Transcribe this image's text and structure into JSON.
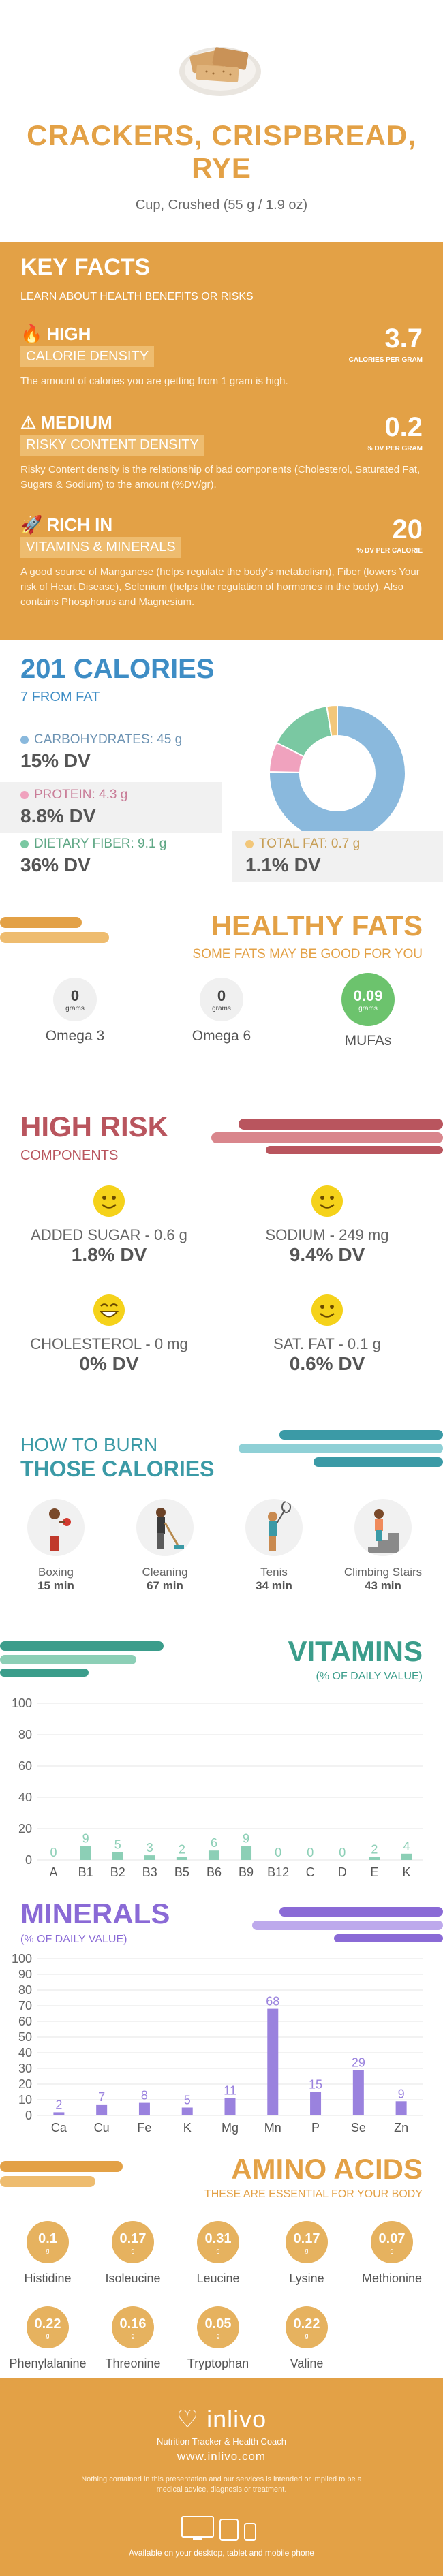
{
  "header": {
    "title_line1": "CRACKERS, CRISPBREAD,",
    "title_line2": "RYE",
    "serving": "Cup, Crushed (55 g / 1.9 oz)"
  },
  "key_facts": {
    "title": "KEY FACTS",
    "subtitle": "LEARN ABOUT HEALTH BENEFITS OR RISKS",
    "items": [
      {
        "level": "HIGH",
        "label": "CALORIE DENSITY",
        "value": "3.7",
        "unit": "CALORIES PER GRAM",
        "desc": "The amount of calories you are getting from 1 gram is high."
      },
      {
        "level": "MEDIUM",
        "label": "RISKY CONTENT DENSITY",
        "value": "0.2",
        "unit": "% DV PER GRAM",
        "desc": "Risky Content density is the relationship of bad components (Cholesterol, Saturated Fat, Sugars & Sodium) to the amount (%DV/gr)."
      },
      {
        "level": "RICH  IN",
        "label": "VITAMINS & MINERALS",
        "value": "20",
        "unit": "% DV PER CALORIE",
        "desc": "A good source of Manganese (helps regulate the body's metabolism), Fiber (lowers Your risk of Heart Disease), Selenium (helps the regulation of hormones in the body). Also contains Phosphorus and Magnesium."
      }
    ]
  },
  "calories": {
    "title": "201 CALORIES",
    "subtitle": "7 FROM FAT",
    "macros": [
      {
        "label": "CARBOHYDRATES: 45 g",
        "dv": "15% DV",
        "color": "#8ab9dd"
      },
      {
        "label": "PROTEIN: 4.3 g",
        "dv": "8.8% DV",
        "color": "#f0a2be"
      },
      {
        "label": "DIETARY FIBER: 9.1 g",
        "dv": "36% DV",
        "color": "#7ac8a2"
      },
      {
        "label": "TOTAL FAT: 0.7 g",
        "dv": "1.1% DV",
        "color": "#f2c77a"
      }
    ],
    "donut": [
      {
        "name": "carbs",
        "value": 180,
        "color": "#8ab9dd"
      },
      {
        "name": "protein",
        "value": 17,
        "color": "#f0a2be"
      },
      {
        "name": "fiber",
        "value": 36,
        "color": "#7ac8a2"
      },
      {
        "name": "fat",
        "value": 6,
        "color": "#f2c77a"
      }
    ]
  },
  "healthy_fats": {
    "title": "HEALTHY FATS",
    "subtitle": "SOME FATS MAY BE GOOD FOR YOU",
    "unit": "grams",
    "items": [
      {
        "name": "Omega 3",
        "value": "0"
      },
      {
        "name": "Omega 6",
        "value": "0"
      },
      {
        "name": "MUFAs",
        "value": "0.09"
      }
    ]
  },
  "high_risk": {
    "title": "HIGH RISK",
    "subtitle": "COMPONENTS",
    "items": [
      {
        "name": "ADDED SUGAR - 0.6 g",
        "dv": "1.8% DV"
      },
      {
        "name": "SODIUM - 249 mg",
        "dv": "9.4% DV"
      },
      {
        "name": "CHOLESTEROL - 0 mg",
        "dv": "0% DV"
      },
      {
        "name": "SAT. FAT - 0.1 g",
        "dv": "0.6% DV"
      }
    ]
  },
  "burn": {
    "title_line1": "HOW TO BURN",
    "title_line2": "THOSE CALORIES",
    "activities": [
      {
        "name": "Boxing",
        "time": "15 min",
        "icon": "boxing-icon"
      },
      {
        "name": "Cleaning",
        "time": "67 min",
        "icon": "cleaning-icon"
      },
      {
        "name": "Tenis",
        "time": "34 min",
        "icon": "tennis-icon"
      },
      {
        "name": "Climbing Stairs",
        "time": "43 min",
        "icon": "stairs-icon"
      }
    ]
  },
  "vitamins": {
    "title": "VITAMINS",
    "subtitle": "(% OF DAILY VALUE)",
    "chart_data": {
      "type": "bar",
      "categories": [
        "A",
        "B1",
        "B2",
        "B3",
        "B5",
        "B6",
        "B9",
        "B12",
        "C",
        "D",
        "E",
        "K"
      ],
      "values": [
        0,
        9,
        5,
        3,
        2,
        6,
        9,
        0,
        0,
        0,
        2,
        4
      ],
      "ylim": [
        0,
        100
      ],
      "yticks": [
        0,
        20,
        40,
        60,
        80,
        100
      ],
      "color": "#8ccfb6"
    }
  },
  "minerals": {
    "title": "MINERALS",
    "subtitle": "(% OF DAILY VALUE)",
    "chart_data": {
      "type": "bar",
      "categories": [
        "Ca",
        "Cu",
        "Fe",
        "K",
        "Mg",
        "Mn",
        "P",
        "Se",
        "Zn"
      ],
      "values": [
        2,
        7,
        8,
        5,
        11,
        68,
        15,
        29,
        9
      ],
      "ylim": [
        0,
        100
      ],
      "yticks": [
        0,
        10,
        20,
        30,
        40,
        50,
        60,
        70,
        80,
        90,
        100
      ],
      "color": "#9a82de"
    }
  },
  "amino": {
    "title": "AMINO ACIDS",
    "subtitle": "THESE ARE ESSENTIAL FOR YOUR BODY",
    "unit": "g",
    "items": [
      {
        "name": "Histidine",
        "value": "0.1"
      },
      {
        "name": "Isoleucine",
        "value": "0.17"
      },
      {
        "name": "Leucine",
        "value": "0.31"
      },
      {
        "name": "Lysine",
        "value": "0.17"
      },
      {
        "name": "Methionine",
        "value": "0.07"
      },
      {
        "name": "Phenylalanine",
        "value": "0.22"
      },
      {
        "name": "Threonine",
        "value": "0.16"
      },
      {
        "name": "Tryptophan",
        "value": "0.05"
      },
      {
        "name": "Valine",
        "value": "0.22"
      }
    ]
  },
  "footer": {
    "logo": "inlivo",
    "tagline": "Nutrition Tracker & Health Coach",
    "url": "www.inlivo.com",
    "disclaimer": "Nothing contained in this presentation and our services is intended or implied to be a medical advice, diagnosis or treatment.",
    "devices": "Available on your desktop, tablet and mobile phone"
  }
}
